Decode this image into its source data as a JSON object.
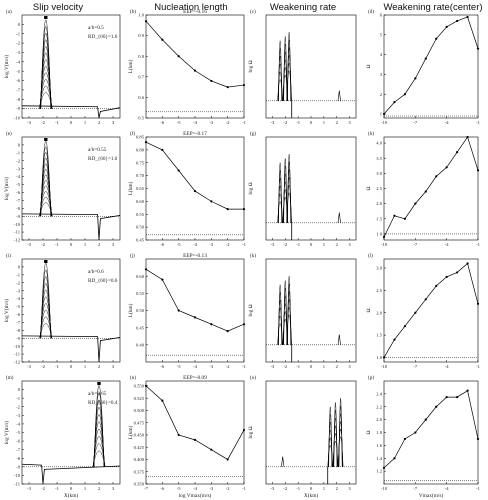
{
  "figure": {
    "column_titles": [
      "Slip velocity",
      "Nucleation length",
      "Weakening rate",
      "Weakening rate(center)"
    ],
    "xlabels": {
      "slip": "X(km)",
      "nucleation": "log Vmax(m/s)",
      "weakening": "X(km)",
      "center": "Vmax(m/s)"
    },
    "ylabels": {
      "slip": "log V(m/s)",
      "nucleation": "L(km)",
      "weakening": "log Ω",
      "center": "Ω"
    }
  },
  "chart_data": [
    {
      "type": "line",
      "panel": "(a)",
      "ylabel": "log V(m/s)",
      "xlim": [
        -3.5,
        3.5
      ],
      "ylim": [
        -10,
        1
      ],
      "xticks": [
        "-3",
        "-2",
        "-1",
        "0",
        "1",
        "2",
        "3"
      ],
      "yticks": [
        "0",
        "-1",
        "-2",
        "-3",
        "-4",
        "-5",
        "-6",
        "-7",
        "-8",
        "-9",
        "-10"
      ],
      "annotations": [
        "a/b=0.5",
        "RD_{60}=1.6"
      ],
      "ref_line_y": -9.0,
      "peak_x": -1.8,
      "peak_side": "left",
      "curve_count": 12
    },
    {
      "type": "line",
      "panel": "(b)",
      "title": "EEP=-0.16",
      "ylabel": "L(km)",
      "xlim": [
        -7,
        -1
      ],
      "ylim": [
        0.5,
        1.0
      ],
      "xticks": [
        "-6",
        "-5",
        "-4",
        "-3",
        "-2",
        "-1"
      ],
      "yticks": [
        "0.5",
        "0.6",
        "0.7",
        "0.8",
        "0.9",
        "1.0"
      ],
      "x": [
        -7,
        -6,
        -5,
        -4,
        -3,
        -2,
        -1
      ],
      "y": [
        0.97,
        0.88,
        0.8,
        0.73,
        0.68,
        0.65,
        0.66
      ],
      "ref_line_y": 0.53
    },
    {
      "type": "line",
      "panel": "(c)",
      "ylabel": "log Ω",
      "xlim": [
        -3.5,
        3.5
      ],
      "ylim": [
        -0.2,
        1.0
      ],
      "xticks": [
        "-3",
        "-2",
        "-1",
        "0",
        "1",
        "2",
        "3"
      ],
      "spikes_side": "left"
    },
    {
      "type": "line",
      "panel": "(d)",
      "ylabel": "Ω",
      "xlim": [
        -10,
        -1
      ],
      "ylim": [
        0.8,
        6.0
      ],
      "xticks": [
        "-10",
        "-7",
        "-4",
        "-1"
      ],
      "yticks": [
        "1",
        "2",
        "3",
        "4",
        "5",
        "6"
      ],
      "x": [
        -10,
        -9,
        -8,
        -7,
        -6,
        -5,
        -4,
        -3,
        -2,
        -1
      ],
      "y": [
        1.0,
        1.6,
        2.0,
        2.8,
        3.8,
        4.8,
        5.4,
        5.7,
        5.9,
        4.3
      ],
      "ref_line_y": 0.9
    },
    {
      "type": "line",
      "panel": "(e)",
      "ylabel": "log V(m/s)",
      "xlim": [
        -3.5,
        3.5
      ],
      "ylim": [
        -12,
        1
      ],
      "xticks": [
        "-3",
        "-2",
        "-1",
        "0",
        "1",
        "2",
        "3"
      ],
      "yticks": [
        "0",
        "-1",
        "-2",
        "-3",
        "-4",
        "-5",
        "-6",
        "-7",
        "-8",
        "-9",
        "-10",
        "-11",
        "-12"
      ],
      "annotations": [
        "a/b=0.55",
        "RD_{60}=1.0"
      ],
      "ref_line_y": -9.0,
      "peak_x": -1.8,
      "peak_side": "left",
      "curve_count": 12
    },
    {
      "type": "line",
      "panel": "(f)",
      "title": "EEP=-0.17",
      "ylabel": "L(km)",
      "xlim": [
        -7,
        -1
      ],
      "ylim": [
        0.45,
        0.85
      ],
      "xticks": [
        "-6",
        "-5",
        "-4",
        "-3",
        "-2",
        "-1"
      ],
      "yticks": [
        "0.45",
        "0.50",
        "0.55",
        "0.60",
        "0.65",
        "0.70",
        "0.75",
        "0.80",
        "0.85"
      ],
      "x": [
        -7,
        -6,
        -5,
        -4,
        -3,
        -2,
        -1
      ],
      "y": [
        0.83,
        0.8,
        0.72,
        0.64,
        0.6,
        0.57,
        0.57
      ],
      "ref_line_y": 0.47
    },
    {
      "type": "line",
      "panel": "(g)",
      "ylabel": "log Ω",
      "xlim": [
        -3.5,
        3.5
      ],
      "ylim": [
        -0.2,
        1.0
      ],
      "xticks": [
        "-3",
        "-2",
        "-1",
        "0",
        "1",
        "2",
        "3"
      ],
      "spikes_side": "left"
    },
    {
      "type": "line",
      "panel": "(h)",
      "ylabel": "Ω",
      "xlim": [
        -10,
        -1
      ],
      "ylim": [
        0.8,
        4.2
      ],
      "xticks": [
        "-10",
        "-7",
        "-4",
        "-1"
      ],
      "yticks": [
        "1.0",
        "1.5",
        "2.0",
        "2.5",
        "3.0",
        "3.5",
        "4.0"
      ],
      "x": [
        -10,
        -9,
        -8,
        -7,
        -6,
        -5,
        -4,
        -3,
        -2,
        -1
      ],
      "y": [
        0.9,
        1.6,
        1.5,
        2.0,
        2.4,
        2.9,
        3.2,
        3.7,
        4.2,
        3.1
      ],
      "ref_line_y": 1.0
    },
    {
      "type": "line",
      "panel": "(i)",
      "ylabel": "log V(m/s)",
      "xlim": [
        -3.5,
        3.5
      ],
      "ylim": [
        -12,
        1
      ],
      "xticks": [
        "-3",
        "-2",
        "-1",
        "0",
        "1",
        "2",
        "3"
      ],
      "yticks": [
        "0",
        "-1",
        "-2",
        "-3",
        "-4",
        "-5",
        "-6",
        "-7",
        "-8",
        "-9",
        "-10",
        "-11",
        "-12"
      ],
      "annotations": [
        "a/b=0.6",
        "RD_{60}=0.6"
      ],
      "ref_line_y": -9.0,
      "peak_x": -1.8,
      "peak_side": "left",
      "curve_count": 10
    },
    {
      "type": "line",
      "panel": "(j)",
      "title": "EEP=-0.13",
      "ylabel": "L(km)",
      "xlim": [
        -7,
        -1
      ],
      "ylim": [
        0.35,
        0.65
      ],
      "xticks": [
        "-6",
        "-5",
        "-4",
        "-3",
        "-2",
        "-1"
      ],
      "yticks": [
        "0.40",
        "0.45",
        "0.50",
        "0.55",
        "0.60"
      ],
      "x": [
        -7,
        -6,
        -5,
        -4,
        -3,
        -2,
        -1
      ],
      "y": [
        0.62,
        0.59,
        0.5,
        0.48,
        0.46,
        0.44,
        0.46
      ],
      "ref_line_y": 0.37
    },
    {
      "type": "line",
      "panel": "(k)",
      "ylabel": "log Ω",
      "xlim": [
        -3.5,
        3.5
      ],
      "ylim": [
        -0.2,
        1.0
      ],
      "xticks": [
        "-3",
        "-2",
        "-1",
        "0",
        "1",
        "2",
        "3"
      ],
      "spikes_side": "left"
    },
    {
      "type": "line",
      "panel": "(l)",
      "ylabel": "Ω",
      "xlim": [
        -10,
        -1
      ],
      "ylim": [
        0.9,
        3.2
      ],
      "xticks": [
        "-10",
        "-7",
        "-4",
        "-1"
      ],
      "yticks": [
        "1.0",
        "1.5",
        "2.0",
        "2.5",
        "3.0"
      ],
      "x": [
        -10,
        -9,
        -8,
        -7,
        -6,
        -5,
        -4,
        -3,
        -2,
        -1
      ],
      "y": [
        1.0,
        1.4,
        1.7,
        2.0,
        2.3,
        2.6,
        2.8,
        2.9,
        3.1,
        2.2
      ],
      "ref_line_y": 1.0
    },
    {
      "type": "line",
      "panel": "(m)",
      "ylabel": "log V(m/s)",
      "xlim": [
        -3.5,
        3.5
      ],
      "ylim": [
        -11,
        1
      ],
      "xticks": [
        "-3",
        "-2",
        "-1",
        "0",
        "1",
        "2",
        "3"
      ],
      "yticks": [
        "0",
        "-1",
        "-2",
        "-3",
        "-4",
        "-5",
        "-6",
        "-7",
        "-8",
        "-9",
        "-10",
        "-11"
      ],
      "annotations": [
        "a/b=0.65",
        "RD_{60}=0.4"
      ],
      "ref_line_y": -9.0,
      "peak_x": 2.0,
      "peak_side": "right",
      "curve_count": 10
    },
    {
      "type": "line",
      "panel": "(n)",
      "title": "EEP=-0.09",
      "ylabel": "L(km)",
      "xlim": [
        -7,
        -1
      ],
      "ylim": [
        0.35,
        0.56
      ],
      "xticks": [
        "-7",
        "-6",
        "-5",
        "-4",
        "-3",
        "-2",
        "-1"
      ],
      "yticks": [
        "0.350",
        "0.375",
        "0.400",
        "0.425",
        "0.450",
        "0.475",
        "0.500",
        "0.525",
        "0.550"
      ],
      "x": [
        -7,
        -6,
        -5,
        -4,
        -3,
        -2,
        -1
      ],
      "y": [
        0.55,
        0.52,
        0.45,
        0.44,
        0.42,
        0.4,
        0.46
      ],
      "ref_line_y": 0.365
    },
    {
      "type": "line",
      "panel": "(o)",
      "ylabel": "log Ω",
      "xlim": [
        -3.5,
        3.5
      ],
      "ylim": [
        -0.2,
        1.0
      ],
      "xticks": [
        "-3",
        "-2",
        "-1",
        "0",
        "1",
        "2",
        "3"
      ],
      "spikes_side": "right"
    },
    {
      "type": "line",
      "panel": "(p)",
      "ylabel": "Ω",
      "xlim": [
        -10,
        -1
      ],
      "ylim": [
        1.0,
        2.6
      ],
      "xticks": [
        "-10",
        "-7",
        "-4",
        "-1"
      ],
      "yticks": [
        "1.2",
        "1.4",
        "1.6",
        "1.8",
        "2.0",
        "2.2",
        "2.4"
      ],
      "x": [
        -10,
        -9,
        -8,
        -7,
        -6,
        -5,
        -4,
        -3,
        -2,
        -1
      ],
      "y": [
        1.25,
        1.4,
        1.7,
        1.8,
        2.0,
        2.2,
        2.35,
        2.35,
        2.45,
        1.7
      ],
      "ref_line_y": 1.05
    }
  ]
}
